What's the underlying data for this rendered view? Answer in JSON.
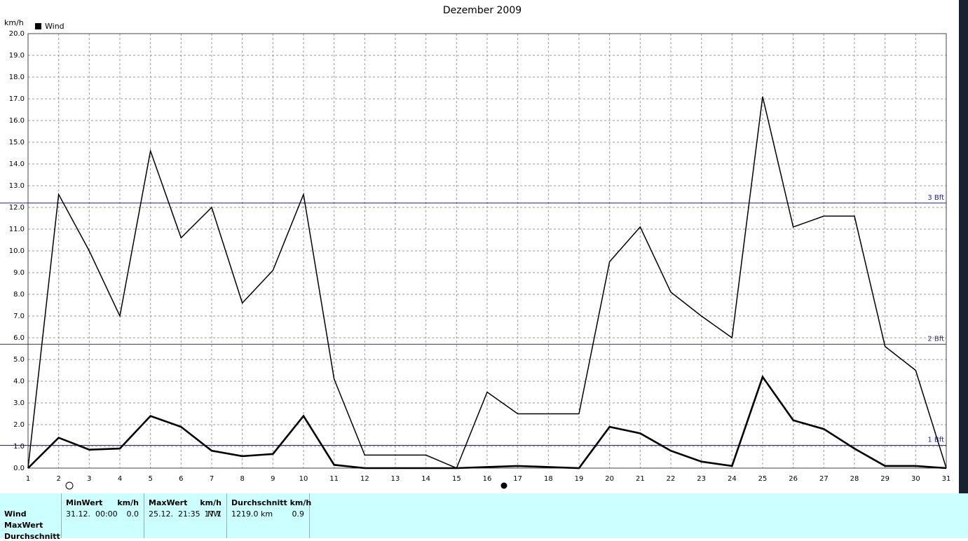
{
  "chart_data": {
    "type": "line",
    "title": "Dezember 2009",
    "y_axis_label": "km/h",
    "x": [
      1,
      2,
      3,
      4,
      5,
      6,
      7,
      8,
      9,
      10,
      11,
      12,
      13,
      14,
      15,
      16,
      17,
      18,
      19,
      20,
      21,
      22,
      23,
      24,
      25,
      26,
      27,
      28,
      29,
      30,
      31
    ],
    "series": [
      {
        "name": "Wind",
        "color": "#000000",
        "values": [
          0,
          12.6,
          10.0,
          7.0,
          14.6,
          10.6,
          12.0,
          7.6,
          9.1,
          12.6,
          4.1,
          0.6,
          0.6,
          0.6,
          0,
          3.5,
          2.5,
          2.5,
          2.5,
          9.5,
          11.1,
          8.1,
          7.0,
          6.0,
          17.1,
          11.1,
          11.6,
          11.6,
          5.6,
          4.5,
          0
        ]
      },
      {
        "color": "#000000",
        "values": [
          0,
          1.4,
          0.85,
          0.9,
          2.4,
          1.9,
          0.8,
          0.55,
          0.65,
          2.4,
          0.15,
          0,
          0,
          0,
          0,
          0.05,
          0.1,
          0.05,
          0,
          1.9,
          1.6,
          0.8,
          0.3,
          0.1,
          4.2,
          2.2,
          1.8,
          0.9,
          0.1,
          0.1,
          0
        ]
      }
    ],
    "xlim": [
      1,
      31
    ],
    "xticks": [
      1,
      2,
      3,
      4,
      5,
      6,
      7,
      8,
      9,
      10,
      11,
      12,
      13,
      14,
      15,
      16,
      17,
      18,
      19,
      20,
      21,
      22,
      23,
      24,
      25,
      26,
      27,
      28,
      29,
      30,
      31
    ],
    "ylim": [
      0,
      20
    ],
    "yticks": [
      {
        "value": 0,
        "label": "0.0"
      },
      {
        "value": 1,
        "label": "1.0"
      },
      {
        "value": 2,
        "label": "2.0"
      },
      {
        "value": 3,
        "label": "3.0"
      },
      {
        "value": 4,
        "label": "4.0"
      },
      {
        "value": 5,
        "label": "5.0"
      },
      {
        "value": 6,
        "label": "6.0"
      },
      {
        "value": 7,
        "label": "7.0"
      },
      {
        "value": 8,
        "label": "8.0"
      },
      {
        "value": 9,
        "label": "9.0"
      },
      {
        "value": 10,
        "label": "10.0"
      },
      {
        "value": 11,
        "label": "11.0"
      },
      {
        "value": 12,
        "label": "12.0"
      },
      {
        "value": 13,
        "label": "13.0"
      },
      {
        "value": 14,
        "label": "14.0"
      },
      {
        "value": 15,
        "label": "15.0"
      },
      {
        "value": 16,
        "label": "16.0"
      },
      {
        "value": 17,
        "label": "17.0"
      },
      {
        "value": 18,
        "label": "18.0"
      },
      {
        "value": 19,
        "label": "19.0"
      },
      {
        "value": 20,
        "label": "20.0"
      }
    ],
    "grid": true,
    "legend": "top-left",
    "reference_lines": [
      {
        "value": 12.2,
        "label": "3 Bft",
        "color": "#2020a0"
      },
      {
        "value": 5.7,
        "label": "2 Bft",
        "color": "#303050"
      },
      {
        "value": 1.05,
        "label": "1 Bft",
        "color": "#2020a0"
      }
    ]
  },
  "stats_table": {
    "row_labels": [
      "Wind",
      "MaxWert",
      "Durchschnitt"
    ],
    "columns": [
      {
        "header": "MinWert",
        "unit": "km/h",
        "cells": [
          "31.12.  00:00",
          "0.0"
        ]
      },
      {
        "header": "MaxWert",
        "unit": "km/h",
        "cells": [
          "25.12.  21:35",
          "NW",
          "17.1"
        ]
      },
      {
        "header": "Durchschnitt km/h",
        "cells": [
          "1219.0 km",
          "0.9"
        ]
      }
    ]
  }
}
